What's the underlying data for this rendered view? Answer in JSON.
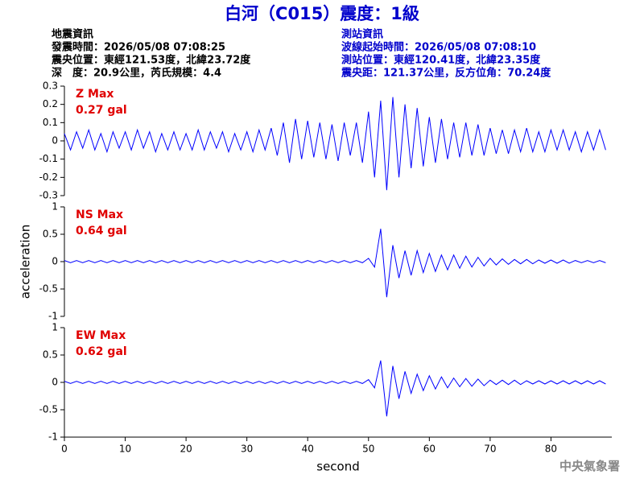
{
  "title": "白河（C015）震度：1級",
  "event_info": [
    "地震資訊",
    "發震時間：2026/05/08 07:08:25",
    "震央位置：東經121.53度，北緯23.72度",
    "深　度：20.9公里，芮氏規模：4.4"
  ],
  "station_info": [
    "測站資訊",
    "波線起始時間：2026/05/08 07:08:10",
    "測站位置：東經120.41度，北緯23.35度",
    "震央距：121.37公里，反方位角：70.24度"
  ],
  "footer": "中央氣象署",
  "chart_data": [
    {
      "type": "line",
      "annotations": [
        "Z Max",
        "0.27 gal"
      ],
      "annotation_color": "#e00000",
      "color": "#0000ff",
      "xlim": [
        0,
        90
      ],
      "ylim": [
        -0.3,
        0.3
      ],
      "yticks": [
        0.3,
        0.2,
        0.1,
        0,
        -0.1,
        -0.2,
        -0.3
      ],
      "x": [
        0,
        1,
        2,
        3,
        4,
        5,
        6,
        7,
        8,
        9,
        10,
        11,
        12,
        13,
        14,
        15,
        16,
        17,
        18,
        19,
        20,
        21,
        22,
        23,
        24,
        25,
        26,
        27,
        28,
        29,
        30,
        31,
        32,
        33,
        34,
        35,
        36,
        37,
        38,
        39,
        40,
        41,
        42,
        43,
        44,
        45,
        46,
        47,
        48,
        49,
        50,
        51,
        52,
        53,
        54,
        55,
        56,
        57,
        58,
        59,
        60,
        61,
        62,
        63,
        64,
        65,
        66,
        67,
        68,
        69,
        70,
        71,
        72,
        73,
        74,
        75,
        76,
        77,
        78,
        79,
        80,
        81,
        82,
        83,
        84,
        85,
        86,
        87,
        88,
        89
      ],
      "values": [
        0.04,
        -0.05,
        0.05,
        -0.04,
        0.06,
        -0.05,
        0.04,
        -0.06,
        0.05,
        -0.04,
        0.05,
        -0.05,
        0.06,
        -0.04,
        0.05,
        -0.06,
        0.04,
        -0.05,
        0.05,
        -0.05,
        0.04,
        -0.05,
        0.06,
        -0.05,
        0.05,
        -0.04,
        0.05,
        -0.06,
        0.04,
        -0.05,
        0.05,
        -0.06,
        0.06,
        -0.05,
        0.07,
        -0.08,
        0.1,
        -0.12,
        0.12,
        -0.1,
        0.11,
        -0.09,
        0.1,
        -0.1,
        0.09,
        -0.11,
        0.1,
        -0.08,
        0.1,
        -0.12,
        0.16,
        -0.2,
        0.22,
        -0.27,
        0.24,
        -0.2,
        0.2,
        -0.15,
        0.18,
        -0.14,
        0.13,
        -0.12,
        0.12,
        -0.1,
        0.1,
        -0.09,
        0.1,
        -0.08,
        0.09,
        -0.08,
        0.07,
        -0.07,
        0.06,
        -0.07,
        0.06,
        -0.06,
        0.07,
        -0.06,
        0.05,
        -0.06,
        0.06,
        -0.05,
        0.06,
        -0.05,
        0.05,
        -0.06,
        0.05,
        -0.05,
        0.06,
        -0.05
      ]
    },
    {
      "type": "line",
      "annotations": [
        "NS Max",
        "0.64 gal"
      ],
      "annotation_color": "#e00000",
      "color": "#0000ff",
      "ylabel": "acceleration",
      "xlim": [
        0,
        90
      ],
      "ylim": [
        -1,
        1
      ],
      "yticks": [
        1,
        0.5,
        0,
        -0.5,
        -1
      ],
      "x": [
        0,
        1,
        2,
        3,
        4,
        5,
        6,
        7,
        8,
        9,
        10,
        11,
        12,
        13,
        14,
        15,
        16,
        17,
        18,
        19,
        20,
        21,
        22,
        23,
        24,
        25,
        26,
        27,
        28,
        29,
        30,
        31,
        32,
        33,
        34,
        35,
        36,
        37,
        38,
        39,
        40,
        41,
        42,
        43,
        44,
        45,
        46,
        47,
        48,
        49,
        50,
        51,
        52,
        53,
        54,
        55,
        56,
        57,
        58,
        59,
        60,
        61,
        62,
        63,
        64,
        65,
        66,
        67,
        68,
        69,
        70,
        71,
        72,
        73,
        74,
        75,
        76,
        77,
        78,
        79,
        80,
        81,
        82,
        83,
        84,
        85,
        86,
        87,
        88,
        89
      ],
      "values": [
        0.02,
        -0.02,
        0.02,
        -0.02,
        0.02,
        -0.02,
        0.02,
        -0.02,
        0.02,
        -0.02,
        0.02,
        -0.02,
        0.02,
        -0.02,
        0.02,
        -0.02,
        0.02,
        -0.02,
        0.02,
        -0.02,
        0.02,
        -0.02,
        0.02,
        -0.02,
        0.02,
        -0.02,
        0.02,
        -0.02,
        0.02,
        -0.02,
        0.02,
        -0.02,
        0.02,
        -0.02,
        0.02,
        -0.02,
        0.02,
        -0.02,
        0.02,
        -0.02,
        0.02,
        -0.02,
        0.02,
        -0.02,
        0.02,
        -0.02,
        0.02,
        -0.02,
        0.02,
        -0.02,
        0.06,
        -0.1,
        0.6,
        -0.65,
        0.3,
        -0.3,
        0.2,
        -0.25,
        0.2,
        -0.2,
        0.15,
        -0.18,
        0.12,
        -0.15,
        0.12,
        -0.12,
        0.1,
        -0.1,
        0.08,
        -0.08,
        0.06,
        -0.06,
        0.05,
        -0.05,
        0.04,
        -0.04,
        0.04,
        -0.04,
        0.03,
        -0.03,
        0.03,
        -0.03,
        0.03,
        -0.03,
        0.02,
        -0.02,
        0.02,
        -0.02,
        0.02,
        -0.02
      ]
    },
    {
      "type": "line",
      "annotations": [
        "EW Max",
        "0.62 gal"
      ],
      "annotation_color": "#e00000",
      "color": "#0000ff",
      "xlabel": "second",
      "xlim": [
        0,
        90
      ],
      "xticks": [
        0,
        10,
        20,
        30,
        40,
        50,
        60,
        70,
        80
      ],
      "ylim": [
        -1,
        1
      ],
      "yticks": [
        1,
        0.5,
        0,
        -0.5,
        -1
      ],
      "x": [
        0,
        1,
        2,
        3,
        4,
        5,
        6,
        7,
        8,
        9,
        10,
        11,
        12,
        13,
        14,
        15,
        16,
        17,
        18,
        19,
        20,
        21,
        22,
        23,
        24,
        25,
        26,
        27,
        28,
        29,
        30,
        31,
        32,
        33,
        34,
        35,
        36,
        37,
        38,
        39,
        40,
        41,
        42,
        43,
        44,
        45,
        46,
        47,
        48,
        49,
        50,
        51,
        52,
        53,
        54,
        55,
        56,
        57,
        58,
        59,
        60,
        61,
        62,
        63,
        64,
        65,
        66,
        67,
        68,
        69,
        70,
        71,
        72,
        73,
        74,
        75,
        76,
        77,
        78,
        79,
        80,
        81,
        82,
        83,
        84,
        85,
        86,
        87,
        88,
        89
      ],
      "values": [
        0.02,
        -0.02,
        0.02,
        -0.02,
        0.02,
        -0.02,
        0.02,
        -0.02,
        0.02,
        -0.02,
        0.02,
        -0.02,
        0.02,
        -0.02,
        0.02,
        -0.02,
        0.02,
        -0.02,
        0.02,
        -0.02,
        0.02,
        -0.02,
        0.02,
        -0.02,
        0.02,
        -0.02,
        0.02,
        -0.02,
        0.02,
        -0.02,
        0.02,
        -0.02,
        0.02,
        -0.02,
        0.02,
        -0.02,
        0.02,
        -0.02,
        0.02,
        -0.02,
        0.02,
        -0.02,
        0.02,
        -0.02,
        0.02,
        -0.02,
        0.02,
        -0.02,
        0.02,
        -0.02,
        0.05,
        -0.1,
        0.4,
        -0.62,
        0.3,
        -0.3,
        0.2,
        -0.2,
        0.15,
        -0.15,
        0.12,
        -0.12,
        0.1,
        -0.1,
        0.08,
        -0.08,
        0.07,
        -0.07,
        0.06,
        -0.06,
        0.04,
        -0.04,
        0.04,
        -0.04,
        0.04,
        -0.04,
        0.03,
        -0.03,
        0.03,
        -0.03,
        0.03,
        -0.03,
        0.03,
        -0.03,
        0.03,
        -0.03,
        0.03,
        -0.03,
        0.03,
        -0.03
      ]
    }
  ]
}
